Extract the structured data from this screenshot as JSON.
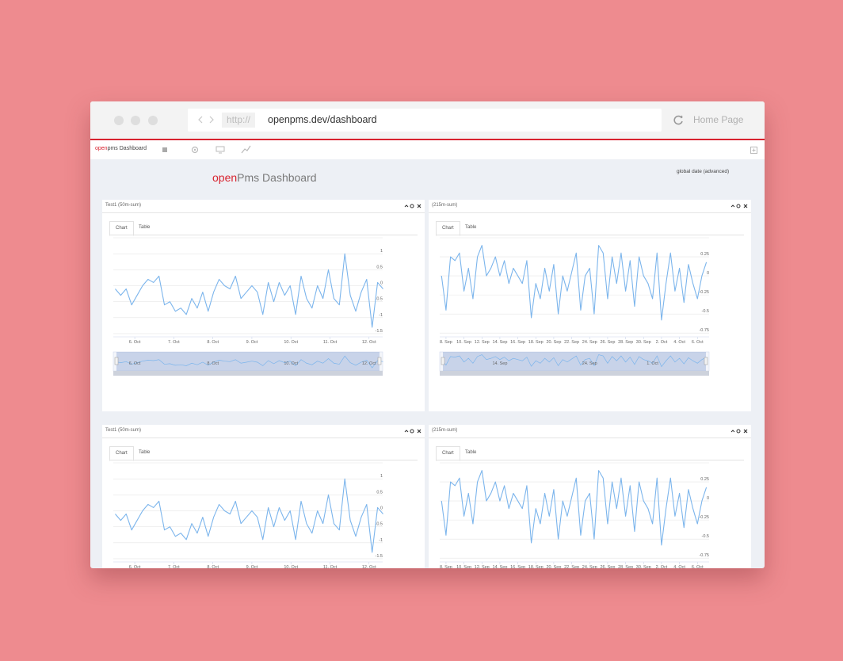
{
  "browser": {
    "url_prefix": "http://",
    "url": "openpms.dev/dashboard",
    "home": "Home Page"
  },
  "app": {
    "brand_accent": "open",
    "brand_rest": "pms Dashboard",
    "title_accent": "open",
    "title_rest": "Pms Dashboard",
    "global_date": "global date (advanced)"
  },
  "panels": [
    {
      "title": "Test1 (50m-sum)",
      "tabs": [
        "Chart",
        "Table"
      ],
      "chart_data": {
        "type": "line",
        "grid": true,
        "x": [
          5.5,
          5.64,
          5.78,
          5.92,
          6.06,
          6.2,
          6.34,
          6.48,
          6.62,
          6.76,
          6.9,
          7.04,
          7.18,
          7.32,
          7.46,
          7.6,
          7.74,
          7.88,
          8.02,
          8.16,
          8.3,
          8.44,
          8.58,
          8.72,
          8.86,
          9.0,
          9.14,
          9.28,
          9.42,
          9.56,
          9.7,
          9.84,
          9.98,
          10.12,
          10.26,
          10.4,
          10.54,
          10.68,
          10.82,
          10.96,
          11.1,
          11.24,
          11.38,
          11.52,
          11.66,
          11.8,
          11.94,
          12.08,
          12.22,
          12.36
        ],
        "series": [
          {
            "color": "#7cb5ec",
            "values": [
              -0.1,
              -0.3,
              -0.1,
              -0.6,
              -0.3,
              0.0,
              0.2,
              0.1,
              0.3,
              -0.6,
              -0.5,
              -0.8,
              -0.7,
              -0.9,
              -0.4,
              -0.7,
              -0.2,
              -0.8,
              -0.2,
              0.2,
              0.0,
              -0.1,
              0.3,
              -0.4,
              -0.2,
              0.0,
              -0.2,
              -0.9,
              0.1,
              -0.5,
              0.1,
              -0.3,
              0.0,
              -0.9,
              0.3,
              -0.4,
              -0.7,
              0.0,
              -0.4,
              0.5,
              -0.4,
              -0.6,
              1.0,
              -0.3,
              -0.8,
              -0.2,
              0.2,
              -1.3,
              0.1,
              -0.1
            ]
          }
        ],
        "xlim": [
          5.45,
          12.35
        ],
        "xticks": [
          {
            "value": 6,
            "label": "6. Oct"
          },
          {
            "value": 7,
            "label": "7. Oct"
          },
          {
            "value": 8,
            "label": "8. Oct"
          },
          {
            "value": 9,
            "label": "9. Oct"
          },
          {
            "value": 10,
            "label": "10. Oct"
          },
          {
            "value": 11,
            "label": "11. Oct"
          },
          {
            "value": 12,
            "label": "12. Oct"
          }
        ],
        "ylim": [
          -1.6,
          1.5
        ],
        "yticks": [
          -1.5,
          -1,
          -0.5,
          0,
          0.5,
          1
        ],
        "navigator_ticks": [
          {
            "value": 6,
            "label": "6. Oct"
          },
          {
            "value": 8,
            "label": "8. Oct"
          },
          {
            "value": 10,
            "label": "10. Oct"
          },
          {
            "value": 12,
            "label": "12. Oct"
          }
        ]
      }
    },
    {
      "title": "(215m-sum)",
      "tabs": [
        "Chart",
        "Table"
      ],
      "chart_data": {
        "type": "line",
        "grid": true,
        "x": [
          7.5,
          8,
          8.5,
          9,
          9.5,
          10,
          10.5,
          11,
          11.5,
          12,
          12.5,
          13,
          13.5,
          14,
          14.5,
          15,
          15.5,
          16,
          16.5,
          17,
          17.5,
          18,
          18.5,
          19,
          19.5,
          20,
          20.5,
          21,
          21.5,
          22,
          22.5,
          23,
          23.5,
          24,
          24.5,
          25,
          25.5,
          26,
          26.5,
          27,
          27.5,
          28,
          28.5,
          29,
          29.5,
          30,
          30.5,
          31,
          31.5,
          32,
          32.5,
          33,
          33.5,
          34,
          34.5,
          35,
          35.5,
          36,
          36.5,
          37
        ],
        "series": [
          {
            "color": "#7cb5ec",
            "values": [
              0.0,
              -0.45,
              0.25,
              0.2,
              0.3,
              -0.2,
              0.1,
              -0.3,
              0.25,
              0.4,
              0.0,
              0.1,
              0.25,
              0.0,
              0.2,
              -0.1,
              0.1,
              0.0,
              -0.1,
              0.2,
              -0.55,
              -0.1,
              -0.3,
              0.1,
              -0.2,
              0.15,
              -0.5,
              0.0,
              -0.2,
              0.05,
              0.3,
              -0.45,
              0.0,
              0.1,
              -0.5,
              0.4,
              0.3,
              -0.3,
              0.25,
              -0.1,
              0.3,
              -0.2,
              0.2,
              -0.4,
              0.25,
              0.0,
              -0.1,
              -0.3,
              0.3,
              -0.58,
              -0.1,
              0.3,
              -0.2,
              0.1,
              -0.35,
              0.15,
              -0.1,
              -0.3,
              0.0,
              0.18
            ]
          }
        ],
        "xlim": [
          7.3,
          37.3
        ],
        "xticks": [
          {
            "value": 8,
            "label": "8. Sep"
          },
          {
            "value": 10,
            "label": "10. Sep"
          },
          {
            "value": 12,
            "label": "12. Sep"
          },
          {
            "value": 14,
            "label": "14. Sep"
          },
          {
            "value": 16,
            "label": "16. Sep"
          },
          {
            "value": 18,
            "label": "18. Sep"
          },
          {
            "value": 20,
            "label": "20. Sep"
          },
          {
            "value": 22,
            "label": "22. Sep"
          },
          {
            "value": 24,
            "label": "24. Sep"
          },
          {
            "value": 26,
            "label": "26. Sep"
          },
          {
            "value": 28,
            "label": "28. Sep"
          },
          {
            "value": 30,
            "label": "30. Sep"
          },
          {
            "value": 32,
            "label": "2. Oct"
          },
          {
            "value": 34,
            "label": "4. Oct"
          },
          {
            "value": 36,
            "label": "6. Oct"
          }
        ],
        "ylim": [
          -0.8,
          0.5
        ],
        "yticks": [
          -0.75,
          -0.5,
          -0.25,
          0,
          0.25
        ],
        "navigator_ticks": [
          {
            "value": 14,
            "label": "14. Sep"
          },
          {
            "value": 24,
            "label": "24. Sep"
          },
          {
            "value": 31,
            "label": "1. Oct"
          }
        ]
      }
    },
    {
      "title": "Test1 (50m-sum)",
      "tabs": [
        "Chart",
        "Table"
      ],
      "chart_data": {
        "type": "line",
        "grid": true,
        "x": [
          5.5,
          5.64,
          5.78,
          5.92,
          6.06,
          6.2,
          6.34,
          6.48,
          6.62,
          6.76,
          6.9,
          7.04,
          7.18,
          7.32,
          7.46,
          7.6,
          7.74,
          7.88,
          8.02,
          8.16,
          8.3,
          8.44,
          8.58,
          8.72,
          8.86,
          9.0,
          9.14,
          9.28,
          9.42,
          9.56,
          9.7,
          9.84,
          9.98,
          10.12,
          10.26,
          10.4,
          10.54,
          10.68,
          10.82,
          10.96,
          11.1,
          11.24,
          11.38,
          11.52,
          11.66,
          11.8,
          11.94,
          12.08,
          12.22,
          12.36
        ],
        "series": [
          {
            "color": "#7cb5ec",
            "values": [
              -0.1,
              -0.3,
              -0.1,
              -0.6,
              -0.3,
              0.0,
              0.2,
              0.1,
              0.3,
              -0.6,
              -0.5,
              -0.8,
              -0.7,
              -0.9,
              -0.4,
              -0.7,
              -0.2,
              -0.8,
              -0.2,
              0.2,
              0.0,
              -0.1,
              0.3,
              -0.4,
              -0.2,
              0.0,
              -0.2,
              -0.9,
              0.1,
              -0.5,
              0.1,
              -0.3,
              0.0,
              -0.9,
              0.3,
              -0.4,
              -0.7,
              0.0,
              -0.4,
              0.5,
              -0.4,
              -0.6,
              1.0,
              -0.3,
              -0.8,
              -0.2,
              0.2,
              -1.3,
              0.1,
              -0.1
            ]
          }
        ],
        "xlim": [
          5.45,
          12.35
        ],
        "xticks": [
          {
            "value": 6,
            "label": "6. Oct"
          },
          {
            "value": 7,
            "label": "7. Oct"
          },
          {
            "value": 8,
            "label": "8. Oct"
          },
          {
            "value": 9,
            "label": "9. Oct"
          },
          {
            "value": 10,
            "label": "10. Oct"
          },
          {
            "value": 11,
            "label": "11. Oct"
          },
          {
            "value": 12,
            "label": "12. Oct"
          }
        ],
        "ylim": [
          -1.6,
          1.5
        ],
        "yticks": [
          -1.5,
          -1,
          -0.5,
          0,
          0.5,
          1
        ]
      }
    },
    {
      "title": "(215m-sum)",
      "tabs": [
        "Chart",
        "Table"
      ],
      "chart_data": {
        "type": "line",
        "grid": true,
        "x": [
          7.5,
          8,
          8.5,
          9,
          9.5,
          10,
          10.5,
          11,
          11.5,
          12,
          12.5,
          13,
          13.5,
          14,
          14.5,
          15,
          15.5,
          16,
          16.5,
          17,
          17.5,
          18,
          18.5,
          19,
          19.5,
          20,
          20.5,
          21,
          21.5,
          22,
          22.5,
          23,
          23.5,
          24,
          24.5,
          25,
          25.5,
          26,
          26.5,
          27,
          27.5,
          28,
          28.5,
          29,
          29.5,
          30,
          30.5,
          31,
          31.5,
          32,
          32.5,
          33,
          33.5,
          34,
          34.5,
          35,
          35.5,
          36,
          36.5,
          37
        ],
        "series": [
          {
            "color": "#7cb5ec",
            "values": [
              0.0,
              -0.45,
              0.25,
              0.2,
              0.3,
              -0.2,
              0.1,
              -0.3,
              0.25,
              0.4,
              0.0,
              0.1,
              0.25,
              0.0,
              0.2,
              -0.1,
              0.1,
              0.0,
              -0.1,
              0.2,
              -0.55,
              -0.1,
              -0.3,
              0.1,
              -0.2,
              0.15,
              -0.5,
              0.0,
              -0.2,
              0.05,
              0.3,
              -0.45,
              0.0,
              0.1,
              -0.5,
              0.4,
              0.3,
              -0.3,
              0.25,
              -0.1,
              0.3,
              -0.2,
              0.2,
              -0.4,
              0.25,
              0.0,
              -0.1,
              -0.3,
              0.3,
              -0.58,
              -0.1,
              0.3,
              -0.2,
              0.1,
              -0.35,
              0.15,
              -0.1,
              -0.3,
              0.0,
              0.18
            ]
          }
        ],
        "xlim": [
          7.3,
          37.3
        ],
        "xticks": [
          {
            "value": 8,
            "label": "8. Sep"
          },
          {
            "value": 10,
            "label": "10. Sep"
          },
          {
            "value": 12,
            "label": "12. Sep"
          },
          {
            "value": 14,
            "label": "14. Sep"
          },
          {
            "value": 16,
            "label": "16. Sep"
          },
          {
            "value": 18,
            "label": "18. Sep"
          },
          {
            "value": 20,
            "label": "20. Sep"
          },
          {
            "value": 22,
            "label": "22. Sep"
          },
          {
            "value": 24,
            "label": "24. Sep"
          },
          {
            "value": 26,
            "label": "26. Sep"
          },
          {
            "value": 28,
            "label": "28. Sep"
          },
          {
            "value": 30,
            "label": "30. Sep"
          },
          {
            "value": 32,
            "label": "2. Oct"
          },
          {
            "value": 34,
            "label": "4. Oct"
          },
          {
            "value": 36,
            "label": "6. Oct"
          }
        ],
        "ylim": [
          -0.8,
          0.5
        ],
        "yticks": [
          -0.75,
          -0.5,
          -0.25,
          0,
          0.25
        ]
      }
    }
  ]
}
